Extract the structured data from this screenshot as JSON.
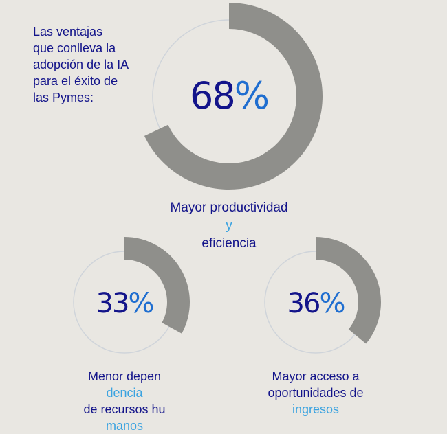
{
  "intro": {
    "lines": [
      "Las ventajas",
      "que conlleva la",
      "adopción de la IA",
      "para el éxito de",
      "las Pymes:"
    ]
  },
  "colors": {
    "ring": "#8f8f8b",
    "track": "#cfd4da",
    "text_dark": "#13148a",
    "text_light": "#3ba3e0",
    "background": "#e9e7e2"
  },
  "chart_data": [
    {
      "type": "pie",
      "values": [
        68
      ],
      "value_label": "68%",
      "caption": {
        "line1_dark": "Mayor productividad",
        "line1_light": " y",
        "line2_dark": "eficiencia",
        "line2_light": ""
      }
    },
    {
      "type": "pie",
      "values": [
        33
      ],
      "value_label": "33%",
      "caption": {
        "line1_dark": "Menor depen",
        "line1_light": "dencia",
        "line2_dark": "de recursos hu",
        "line2_light": "manos"
      }
    },
    {
      "type": "pie",
      "values": [
        36
      ],
      "value_label": "36%",
      "caption": {
        "line1_dark": "Mayor acceso a",
        "line1_light": "",
        "line2_dark": "oportunidades de ",
        "line2_light": "ingresos"
      }
    }
  ]
}
